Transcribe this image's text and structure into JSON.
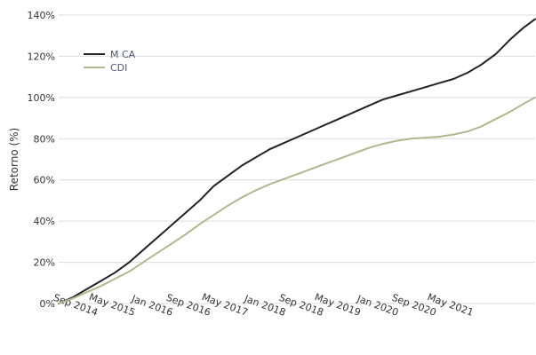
{
  "chart_data": {
    "type": "line",
    "title": "",
    "xlabel": "",
    "ylabel": "Retorno (%)",
    "ylim": [
      0,
      140
    ],
    "yticks": [
      "0%",
      "20%",
      "40%",
      "60%",
      "80%",
      "100%",
      "120%",
      "140%"
    ],
    "ytick_values": [
      0,
      20,
      40,
      60,
      80,
      100,
      120,
      140
    ],
    "x_ticks": [
      {
        "label": "Sep 2014",
        "t": 2014.67
      },
      {
        "label": "May 2015",
        "t": 2015.33
      },
      {
        "label": "Jan 2016",
        "t": 2016.0
      },
      {
        "label": "Sep 2016",
        "t": 2016.67
      },
      {
        "label": "May 2017",
        "t": 2017.33
      },
      {
        "label": "Jan 2018",
        "t": 2018.0
      },
      {
        "label": "Sep 2018",
        "t": 2018.67
      },
      {
        "label": "May 2019",
        "t": 2019.33
      },
      {
        "label": "Jan 2020",
        "t": 2020.0
      },
      {
        "label": "Sep 2020",
        "t": 2020.67
      },
      {
        "label": "May 2021",
        "t": 2021.33
      }
    ],
    "xlim": [
      2014.0,
      2022.45
    ],
    "grid": "horizontal",
    "legend_position": "top-left",
    "colors": {
      "M CA": "#222222",
      "CDI": "#b5b58f"
    },
    "series": [
      {
        "name": "M CA",
        "x": [
          2014.0,
          2014.25,
          2014.5,
          2014.75,
          2015.0,
          2015.25,
          2015.5,
          2015.75,
          2016.0,
          2016.25,
          2016.5,
          2016.75,
          2017.0,
          2017.25,
          2017.5,
          2017.75,
          2018.0,
          2018.25,
          2018.5,
          2018.75,
          2019.0,
          2019.25,
          2019.5,
          2019.75,
          2020.0,
          2020.25,
          2020.5,
          2020.75,
          2021.0,
          2021.25,
          2021.5,
          2021.75,
          2022.0,
          2022.25,
          2022.45
        ],
        "values": [
          0,
          3,
          7,
          11,
          15,
          20,
          26,
          32,
          38,
          44,
          50,
          57,
          62,
          67,
          71,
          75,
          78,
          81,
          84,
          87,
          90,
          93,
          96,
          99,
          101,
          103,
          105,
          107,
          109,
          112,
          116,
          121,
          128,
          134,
          138
        ]
      },
      {
        "name": "CDI",
        "x": [
          2014.0,
          2014.25,
          2014.5,
          2014.75,
          2015.0,
          2015.25,
          2015.5,
          2015.75,
          2016.0,
          2016.25,
          2016.5,
          2016.75,
          2017.0,
          2017.25,
          2017.5,
          2017.75,
          2018.0,
          2018.25,
          2018.5,
          2018.75,
          2019.0,
          2019.25,
          2019.5,
          2019.75,
          2020.0,
          2020.25,
          2020.5,
          2020.75,
          2021.0,
          2021.25,
          2021.5,
          2021.75,
          2022.0,
          2022.25,
          2022.45
        ],
        "values": [
          0,
          2.5,
          5.5,
          8.5,
          12,
          15.5,
          20,
          24.5,
          29,
          33.5,
          38.5,
          43,
          47.5,
          51.5,
          55,
          58,
          60.5,
          63,
          65.5,
          68,
          70.5,
          73,
          75.5,
          77.5,
          79,
          80,
          80.5,
          81,
          82,
          83.5,
          86,
          89.5,
          93,
          97,
          100
        ]
      }
    ]
  }
}
